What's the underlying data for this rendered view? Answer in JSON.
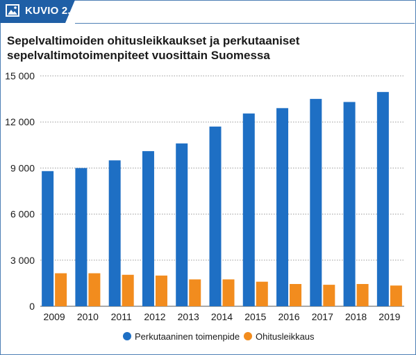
{
  "header": {
    "label": "KUVIO 2.",
    "icon": "image-icon"
  },
  "colors": {
    "header_band": "#1f5fa6",
    "series_1": "#1e6fc4",
    "series_2": "#f28c1e",
    "grid": "#9a9a9a"
  },
  "chart_data": {
    "type": "bar",
    "title": "Sepelvaltimoiden ohitusleikkaukset ja perkutaaniset sepelvaltimotoimenpiteet vuosittain Suomessa",
    "xlabel": "",
    "ylabel": "",
    "categories": [
      "2009",
      "2010",
      "2011",
      "2012",
      "2013",
      "2014",
      "2015",
      "2016",
      "2017",
      "2018",
      "2019"
    ],
    "series": [
      {
        "name": "Perkutaaninen toimenpide",
        "color": "#1e6fc4",
        "values": [
          8800,
          9000,
          9500,
          10100,
          10600,
          11700,
          12550,
          12900,
          13500,
          13300,
          13950
        ]
      },
      {
        "name": "Ohitusleikkaus",
        "color": "#f28c1e",
        "values": [
          2150,
          2150,
          2050,
          2000,
          1750,
          1750,
          1600,
          1450,
          1400,
          1450,
          1350
        ]
      }
    ],
    "ylim": [
      0,
      15000
    ],
    "yticks": [
      0,
      3000,
      6000,
      9000,
      12000,
      15000
    ],
    "ytick_labels": [
      "0",
      "3 000",
      "6 000",
      "9 000",
      "12 000",
      "15 000"
    ],
    "grid": true,
    "legend_position": "bottom"
  }
}
